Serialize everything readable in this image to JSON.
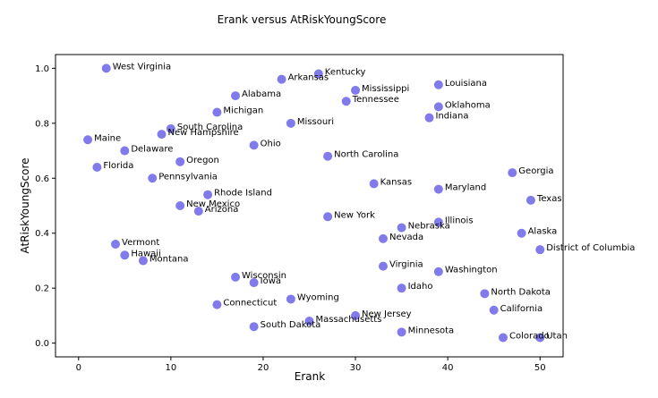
{
  "chart_data": {
    "type": "scatter",
    "title": "Erank versus AtRiskYoungScore",
    "xlabel": "Erank",
    "ylabel": "AtRiskYoungScore",
    "xlim": [
      -2.5,
      52.5
    ],
    "ylim": [
      -0.05,
      1.05
    ],
    "xticks": [
      "0",
      "10",
      "20",
      "30",
      "40",
      "50"
    ],
    "yticks": [
      "0.0",
      "0.2",
      "0.4",
      "0.6",
      "0.8",
      "1.0"
    ],
    "grid": false,
    "marker_color": "#6b63e8",
    "points": [
      {
        "label": "West Virginia",
        "x": 3,
        "y": 1.0
      },
      {
        "label": "Kentucky",
        "x": 26,
        "y": 0.98
      },
      {
        "label": "Arkansas",
        "x": 22,
        "y": 0.96
      },
      {
        "label": "Louisiana",
        "x": 39,
        "y": 0.94
      },
      {
        "label": "Mississippi",
        "x": 30,
        "y": 0.92
      },
      {
        "label": "Alabama",
        "x": 17,
        "y": 0.9
      },
      {
        "label": "Tennessee",
        "x": 29,
        "y": 0.88
      },
      {
        "label": "Oklahoma",
        "x": 39,
        "y": 0.86
      },
      {
        "label": "Michigan",
        "x": 15,
        "y": 0.84
      },
      {
        "label": "Indiana",
        "x": 38,
        "y": 0.82
      },
      {
        "label": "Missouri",
        "x": 23,
        "y": 0.8
      },
      {
        "label": "South Carolina",
        "x": 10,
        "y": 0.78
      },
      {
        "label": "New Hampshire",
        "x": 9,
        "y": 0.76
      },
      {
        "label": "Maine",
        "x": 1,
        "y": 0.74
      },
      {
        "label": "Ohio",
        "x": 19,
        "y": 0.72
      },
      {
        "label": "Delaware",
        "x": 5,
        "y": 0.7
      },
      {
        "label": "North Carolina",
        "x": 27,
        "y": 0.68
      },
      {
        "label": "Oregon",
        "x": 11,
        "y": 0.66
      },
      {
        "label": "Florida",
        "x": 2,
        "y": 0.64
      },
      {
        "label": "Georgia",
        "x": 47,
        "y": 0.62
      },
      {
        "label": "Pennsylvania",
        "x": 8,
        "y": 0.6
      },
      {
        "label": "Kansas",
        "x": 32,
        "y": 0.58
      },
      {
        "label": "Maryland",
        "x": 39,
        "y": 0.56
      },
      {
        "label": "Rhode Island",
        "x": 14,
        "y": 0.54
      },
      {
        "label": "Texas",
        "x": 49,
        "y": 0.52
      },
      {
        "label": "New Mexico",
        "x": 11,
        "y": 0.5
      },
      {
        "label": "Arizona",
        "x": 13,
        "y": 0.48
      },
      {
        "label": "New York",
        "x": 27,
        "y": 0.46
      },
      {
        "label": "Illinois",
        "x": 39,
        "y": 0.44
      },
      {
        "label": "Nebraska",
        "x": 35,
        "y": 0.42
      },
      {
        "label": "Alaska",
        "x": 48,
        "y": 0.4
      },
      {
        "label": "Nevada",
        "x": 33,
        "y": 0.38
      },
      {
        "label": "Vermont",
        "x": 4,
        "y": 0.36
      },
      {
        "label": "District of Columbia",
        "x": 50,
        "y": 0.34
      },
      {
        "label": "Hawaii",
        "x": 5,
        "y": 0.32
      },
      {
        "label": "Montana",
        "x": 7,
        "y": 0.3
      },
      {
        "label": "Virginia",
        "x": 33,
        "y": 0.28
      },
      {
        "label": "Washington",
        "x": 39,
        "y": 0.26
      },
      {
        "label": "Wisconsin",
        "x": 17,
        "y": 0.24
      },
      {
        "label": "Iowa",
        "x": 19,
        "y": 0.22
      },
      {
        "label": "Idaho",
        "x": 35,
        "y": 0.2
      },
      {
        "label": "North Dakota",
        "x": 44,
        "y": 0.18
      },
      {
        "label": "Wyoming",
        "x": 23,
        "y": 0.16
      },
      {
        "label": "Connecticut",
        "x": 15,
        "y": 0.14
      },
      {
        "label": "California",
        "x": 45,
        "y": 0.12
      },
      {
        "label": "New Jersey",
        "x": 30,
        "y": 0.1
      },
      {
        "label": "Massachusetts",
        "x": 25,
        "y": 0.08
      },
      {
        "label": "South Dakota",
        "x": 19,
        "y": 0.06
      },
      {
        "label": "Minnesota",
        "x": 35,
        "y": 0.04
      },
      {
        "label": "Colorado",
        "x": 46,
        "y": 0.02
      },
      {
        "label": "Utah",
        "x": 50,
        "y": 0.02
      }
    ]
  }
}
